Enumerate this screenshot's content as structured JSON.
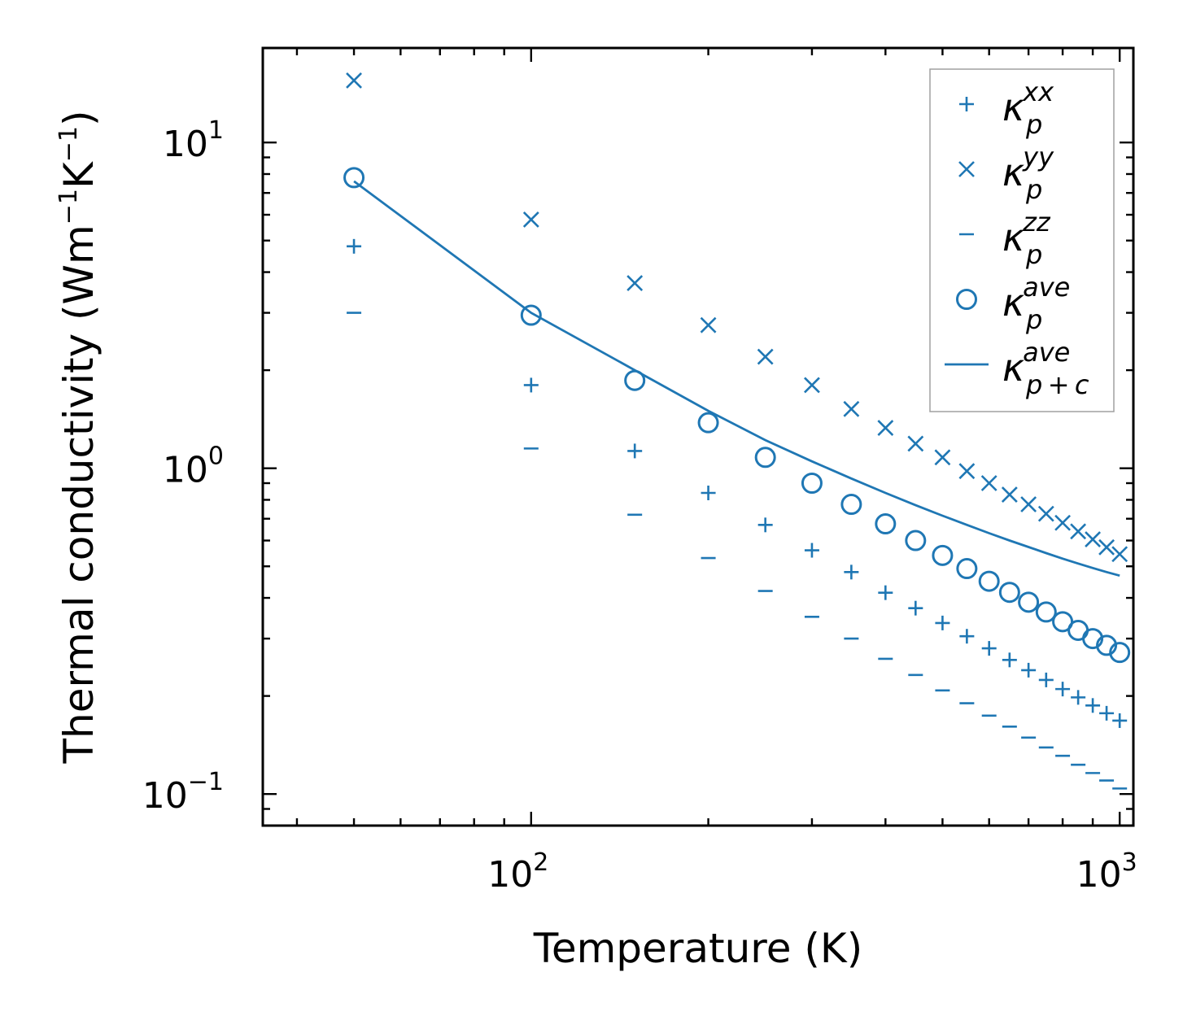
{
  "chart_data": {
    "type": "scatter",
    "title": "",
    "xlabel": "Temperature (K)",
    "ylabel_parts": {
      "main": "Thermal conductivity (Wm",
      "exp1": "−1",
      "mid": "K",
      "exp2": "−1",
      "end": ")"
    },
    "xscale": "log",
    "yscale": "log",
    "xlim": [
      35,
      1055
    ],
    "ylim": [
      0.08,
      19.5
    ],
    "grid": false,
    "legend_position": "top-right",
    "x_ticks": [
      {
        "value": 100,
        "base": "10",
        "exp": "2"
      },
      {
        "value": 1000,
        "base": "10",
        "exp": "3"
      }
    ],
    "y_ticks": [
      {
        "value": 0.1,
        "base": "10",
        "exp": "−1"
      },
      {
        "value": 1,
        "base": "10",
        "exp": "0"
      },
      {
        "value": 10,
        "base": "10",
        "exp": "1"
      }
    ],
    "x": [
      50,
      100,
      150,
      200,
      250,
      300,
      350,
      400,
      450,
      500,
      550,
      600,
      650,
      700,
      750,
      800,
      850,
      900,
      950,
      1000
    ],
    "series": [
      {
        "name": "kappa_p^xx",
        "marker": "plus",
        "legend": {
          "base": "κ",
          "sub": "p",
          "sup": "xx"
        },
        "values": [
          4.8,
          1.8,
          1.13,
          0.84,
          0.67,
          0.56,
          0.48,
          0.415,
          0.372,
          0.335,
          0.305,
          0.28,
          0.258,
          0.24,
          0.224,
          0.21,
          0.198,
          0.187,
          0.177,
          0.168
        ]
      },
      {
        "name": "kappa_p^yy",
        "marker": "x",
        "legend": {
          "base": "κ",
          "sub": "p",
          "sup": "yy"
        },
        "values": [
          15.5,
          5.8,
          3.7,
          2.75,
          2.2,
          1.8,
          1.52,
          1.33,
          1.19,
          1.08,
          0.98,
          0.9,
          0.83,
          0.775,
          0.725,
          0.68,
          0.64,
          0.605,
          0.572,
          0.545
        ]
      },
      {
        "name": "kappa_p^zz",
        "marker": "minus",
        "legend": {
          "base": "κ",
          "sub": "p",
          "sup": "zz"
        },
        "values": [
          3.0,
          1.15,
          0.72,
          0.53,
          0.42,
          0.35,
          0.3,
          0.26,
          0.232,
          0.208,
          0.19,
          0.174,
          0.161,
          0.149,
          0.139,
          0.131,
          0.123,
          0.116,
          0.11,
          0.104
        ]
      },
      {
        "name": "kappa_p^ave",
        "marker": "circle",
        "legend": {
          "base": "κ",
          "sub": "p",
          "sup": "ave"
        },
        "values": [
          7.8,
          2.95,
          1.86,
          1.38,
          1.08,
          0.9,
          0.775,
          0.675,
          0.6,
          0.54,
          0.492,
          0.45,
          0.416,
          0.388,
          0.362,
          0.338,
          0.318,
          0.3,
          0.286,
          0.272
        ]
      },
      {
        "name": "kappa_p+c^ave",
        "marker": "line",
        "legend": {
          "base": "κ",
          "sub": "p + c",
          "sup": "ave"
        },
        "values": [
          7.6,
          3.0,
          2.0,
          1.5,
          1.22,
          1.05,
          0.93,
          0.84,
          0.77,
          0.715,
          0.67,
          0.632,
          0.6,
          0.573,
          0.549,
          0.528,
          0.51,
          0.494,
          0.48,
          0.468
        ]
      }
    ],
    "color": "#1f77b4"
  }
}
